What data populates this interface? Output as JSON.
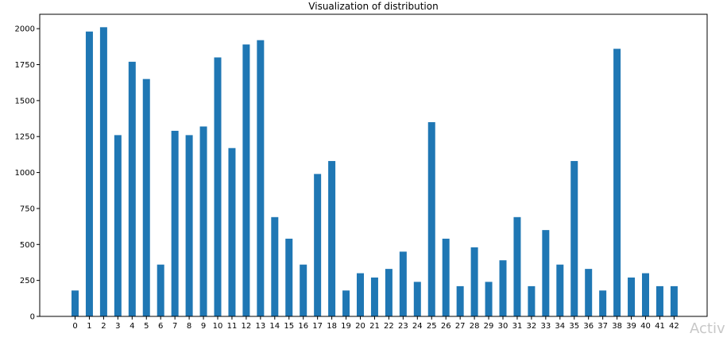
{
  "chart_data": {
    "type": "bar",
    "title": "Visualization of distribution",
    "xlabel": "",
    "ylabel": "",
    "categories": [
      "0",
      "1",
      "2",
      "3",
      "4",
      "5",
      "6",
      "7",
      "8",
      "9",
      "10",
      "11",
      "12",
      "13",
      "14",
      "15",
      "16",
      "17",
      "18",
      "19",
      "20",
      "21",
      "22",
      "23",
      "24",
      "25",
      "26",
      "27",
      "28",
      "29",
      "30",
      "31",
      "32",
      "33",
      "34",
      "35",
      "36",
      "37",
      "38",
      "39",
      "40",
      "41",
      "42"
    ],
    "values": [
      180,
      1980,
      2010,
      1260,
      1770,
      1650,
      360,
      1290,
      1260,
      1320,
      1800,
      1170,
      1890,
      1920,
      690,
      540,
      360,
      990,
      1080,
      180,
      300,
      270,
      330,
      450,
      240,
      1350,
      540,
      210,
      480,
      240,
      390,
      690,
      210,
      600,
      360,
      1080,
      330,
      180,
      1860,
      270,
      300,
      210,
      210
    ],
    "ylim": [
      0,
      2100
    ],
    "yticks": [
      0,
      250,
      500,
      750,
      1000,
      1250,
      1500,
      1750,
      2000
    ],
    "grid": false,
    "bar_color": "#1f77b4"
  },
  "watermark_text": "Activ"
}
